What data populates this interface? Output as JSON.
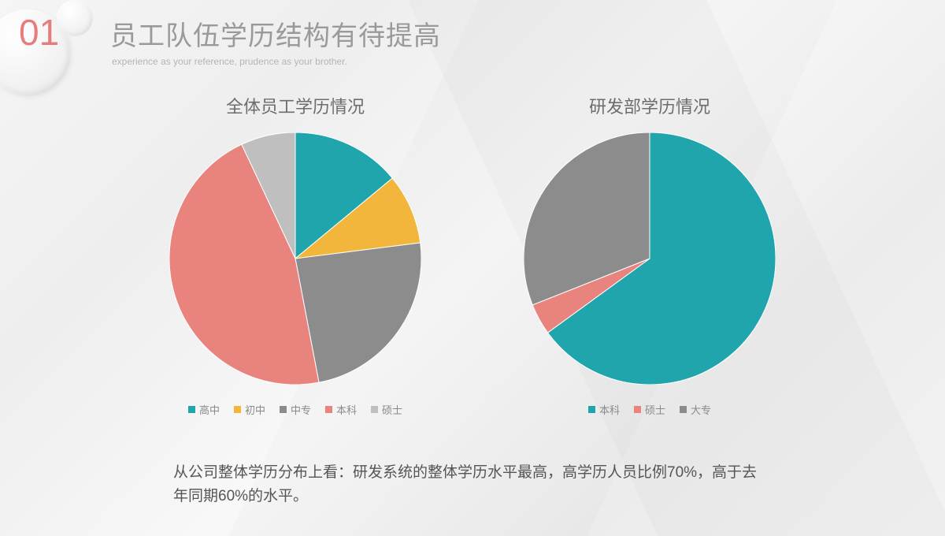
{
  "slide_number": "01",
  "slide_number_color": "#e67d7d",
  "title": "员工队伍学历结构有待提高",
  "subtitle": "experience as your reference, prudence as your brother.",
  "chart_left": {
    "title": "全体员工学历情况",
    "type": "pie",
    "radius": 160,
    "stroke": "#ffffff",
    "stroke_width": 1,
    "slices": [
      {
        "label": "高中",
        "value": 14,
        "color": "#1fa5ab"
      },
      {
        "label": "初中",
        "value": 9,
        "color": "#f2b63c"
      },
      {
        "label": "中专",
        "value": 24,
        "color": "#8c8c8c"
      },
      {
        "label": "本科",
        "value": 46,
        "color": "#e9837d"
      },
      {
        "label": "硕士",
        "value": 7,
        "color": "#bfbfbf"
      }
    ],
    "legend_label_color": "#8a8a8a"
  },
  "chart_right": {
    "title": "研发部学历情况",
    "type": "pie",
    "radius": 160,
    "stroke": "#ffffff",
    "stroke_width": 1,
    "slices": [
      {
        "label": "本科",
        "value": 65,
        "color": "#1fa5ab"
      },
      {
        "label": "硕士",
        "value": 4,
        "color": "#e9837d"
      },
      {
        "label": "大专",
        "value": 31,
        "color": "#8c8c8c"
      }
    ],
    "legend_label_color": "#8a8a8a"
  },
  "footer": "从公司整体学历分布上看：研发系统的整体学历水平最高，高学历人员比例70%，高于去年同期60%的水平。"
}
